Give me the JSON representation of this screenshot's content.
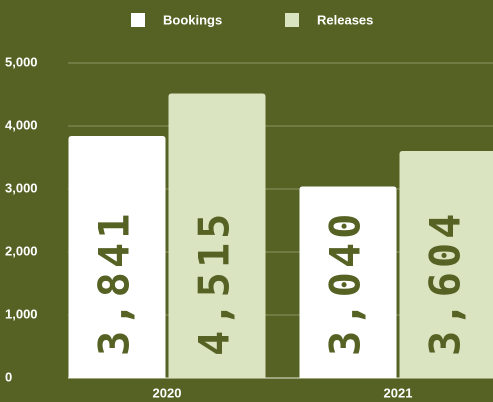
{
  "chart_data": {
    "type": "bar",
    "categories": [
      "2020",
      "2021"
    ],
    "series": [
      {
        "name": "Bookings",
        "color": "#ffffff",
        "values": [
          3841,
          3040
        ],
        "value_labels": [
          "3,841",
          "3,040"
        ]
      },
      {
        "name": "Releases",
        "color": "#dbe4c0",
        "values": [
          4515,
          3604
        ],
        "value_labels": [
          "4,515",
          "3,604"
        ]
      }
    ],
    "ylim": [
      0,
      5000
    ],
    "yticks": [
      {
        "value": 0,
        "label": "0"
      },
      {
        "value": 1000,
        "label": "1,000"
      },
      {
        "value": 2000,
        "label": "2,000"
      },
      {
        "value": 3000,
        "label": "3,000"
      },
      {
        "value": 4000,
        "label": "4,000"
      },
      {
        "value": 5000,
        "label": "5,000"
      }
    ],
    "grid": true,
    "legend": "top"
  }
}
